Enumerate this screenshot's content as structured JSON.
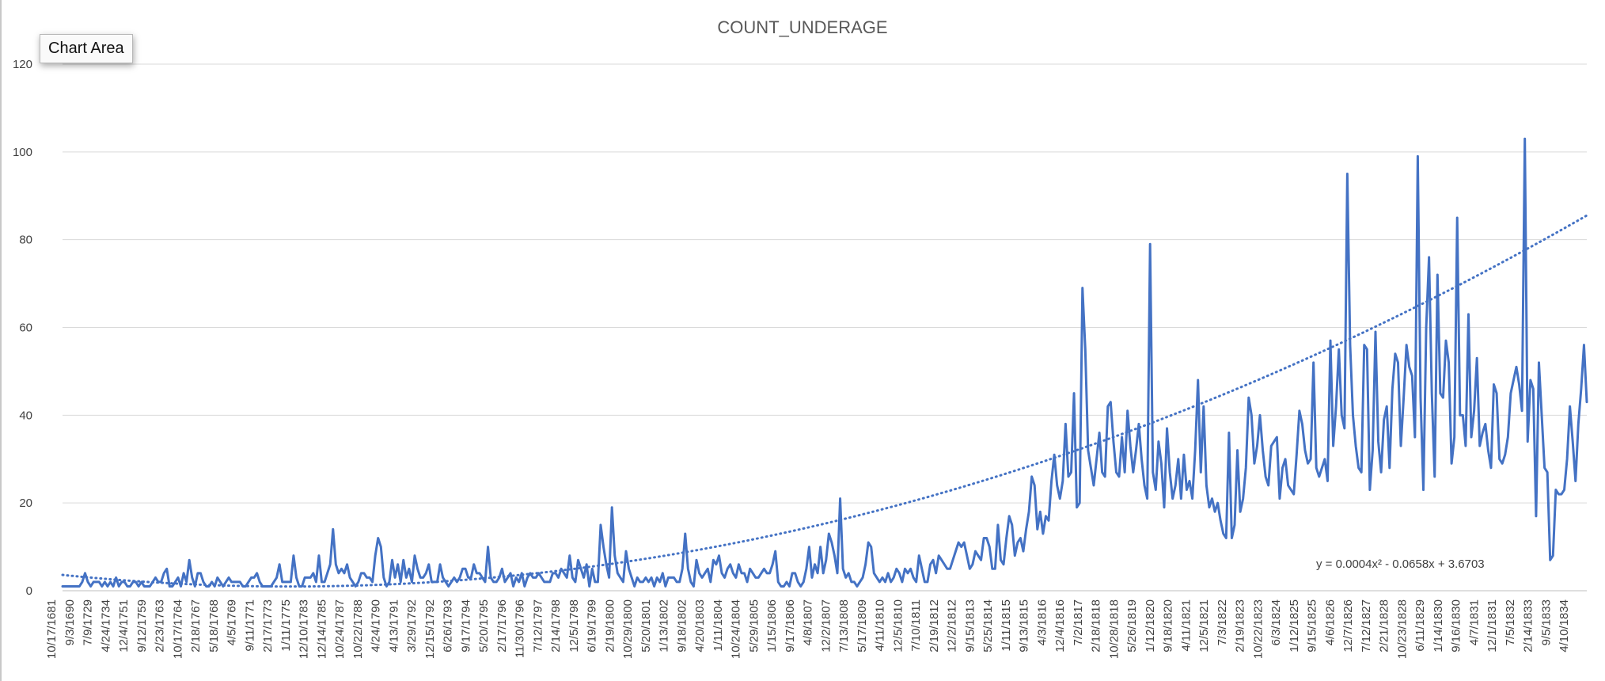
{
  "tooltip": "Chart Area",
  "chart_data": {
    "type": "line",
    "title": "COUNT_UNDERAGE",
    "xlabel": "",
    "ylabel": "",
    "ylim": [
      0,
      120
    ],
    "yticks": [
      "0",
      "20",
      "40",
      "60",
      "80",
      "100",
      "120"
    ],
    "grid": true,
    "legend": "none",
    "series_color": "#4472C4",
    "trendline_color": "#4472C4",
    "trendline_label": "y = 0.0004x² - 0.0658x + 3.6703",
    "trendline_coefficients": {
      "a": 0.0004,
      "b": -0.0658,
      "c": 3.6703
    },
    "x_tick_labels": [
      "10/17/1681",
      "9/3/1690",
      "7/9/1729",
      "4/24/1734",
      "12/4/1751",
      "9/12/1759",
      "2/23/1763",
      "10/17/1764",
      "2/18/1767",
      "5/18/1768",
      "4/5/1769",
      "9/11/1771",
      "2/17/1773",
      "1/11/1775",
      "12/10/1783",
      "12/14/1785",
      "10/24/1787",
      "10/22/1788",
      "4/24/1790",
      "4/13/1791",
      "3/29/1792",
      "12/15/1792",
      "6/26/1793",
      "9/17/1794",
      "5/20/1795",
      "2/17/1796",
      "11/30/1796",
      "7/12/1797",
      "2/14/1798",
      "12/5/1798",
      "6/19/1799",
      "2/19/1800",
      "10/29/1800",
      "5/20/1801",
      "1/13/1802",
      "9/18/1802",
      "4/20/1803",
      "1/11/1804",
      "10/24/1804",
      "5/29/1805",
      "1/15/1806",
      "9/17/1806",
      "4/8/1807",
      "12/2/1807",
      "7/13/1808",
      "5/17/1809",
      "4/11/1810",
      "12/5/1810",
      "7/10/1811",
      "2/19/1812",
      "12/2/1812",
      "9/15/1813",
      "5/25/1814",
      "1/11/1815",
      "9/13/1815",
      "4/3/1816",
      "12/4/1816",
      "7/2/1817",
      "2/18/1818",
      "10/28/1818",
      "5/26/1819",
      "1/12/1820",
      "9/18/1820",
      "4/11/1821",
      "12/5/1821",
      "7/3/1822",
      "2/19/1823",
      "10/22/1823",
      "6/3/1824",
      "1/12/1825",
      "9/15/1825",
      "4/6/1826",
      "12/7/1826",
      "7/12/1827",
      "2/21/1828",
      "10/23/1828",
      "6/11/1829",
      "1/14/1830",
      "9/16/1830",
      "4/7/1831",
      "12/1/1831",
      "7/5/1832",
      "2/14/1833",
      "9/5/1833",
      "4/10/1834"
    ],
    "series": [
      {
        "values": [
          1,
          1,
          1,
          1,
          1,
          1,
          1,
          2,
          4,
          2,
          1,
          2,
          2,
          2,
          1,
          2,
          1,
          2,
          1,
          3,
          1,
          2,
          2,
          1,
          1,
          2,
          2,
          1,
          2,
          1,
          1,
          1,
          2,
          3,
          2,
          2,
          4,
          5,
          1,
          1,
          2,
          3,
          1,
          4,
          2,
          7,
          3,
          1,
          4,
          4,
          2,
          1,
          1,
          2,
          1,
          3,
          2,
          1,
          2,
          3,
          2,
          2,
          2,
          2,
          1,
          1,
          2,
          3,
          3,
          4,
          2,
          1,
          1,
          1,
          1,
          2,
          3,
          6,
          2,
          2,
          2,
          2,
          8,
          3,
          1,
          1,
          3,
          3,
          3,
          4,
          2,
          8,
          2,
          2,
          4,
          6,
          14,
          6,
          4,
          5,
          4,
          6,
          3,
          2,
          1,
          2,
          4,
          4,
          3,
          3,
          2,
          8,
          12,
          10,
          3,
          1,
          2,
          7,
          3,
          6,
          2,
          7,
          3,
          5,
          2,
          8,
          5,
          3,
          3,
          4,
          6,
          2,
          2,
          2,
          6,
          3,
          2,
          1,
          2,
          3,
          2,
          3,
          5,
          5,
          3,
          3,
          6,
          4,
          4,
          3,
          2,
          10,
          3,
          2,
          2,
          3,
          5,
          2,
          3,
          4,
          1,
          3,
          2,
          4,
          1,
          3,
          4,
          3,
          3,
          4,
          3,
          2,
          2,
          2,
          4,
          4,
          3,
          5,
          4,
          3,
          8,
          3,
          2,
          7,
          5,
          3,
          6,
          1,
          5,
          2,
          2,
          15,
          10,
          6,
          3,
          19,
          8,
          4,
          3,
          2,
          9,
          5,
          3,
          1,
          3,
          2,
          2,
          3,
          2,
          3,
          1,
          3,
          2,
          4,
          1,
          3,
          3,
          3,
          2,
          2,
          5,
          13,
          5,
          2,
          1,
          7,
          4,
          3,
          4,
          5,
          2,
          7,
          6,
          8,
          4,
          3,
          5,
          6,
          4,
          3,
          6,
          4,
          4,
          2,
          5,
          4,
          3,
          3,
          4,
          5,
          4,
          4,
          6,
          9,
          2,
          1,
          1,
          2,
          1,
          4,
          4,
          2,
          1,
          2,
          5,
          10,
          3,
          6,
          4,
          10,
          4,
          7,
          13,
          11,
          8,
          4,
          21,
          5,
          3,
          4,
          2,
          2,
          1,
          2,
          3,
          6,
          11,
          10,
          4,
          3,
          2,
          3,
          2,
          4,
          2,
          3,
          5,
          4,
          2,
          5,
          4,
          5,
          3,
          2,
          8,
          5,
          2,
          2,
          6,
          7,
          4,
          8,
          7,
          6,
          5,
          5,
          7,
          9,
          11,
          10,
          11,
          8,
          5,
          6,
          9,
          8,
          7,
          12,
          12,
          10,
          5,
          5,
          15,
          7,
          6,
          12,
          17,
          15,
          8,
          11,
          12,
          9,
          14,
          18,
          26,
          24,
          14,
          18,
          13,
          17,
          16,
          25,
          31,
          24,
          21,
          25,
          38,
          26,
          27,
          45,
          19,
          20,
          69,
          55,
          32,
          28,
          24,
          30,
          36,
          27,
          26,
          42,
          43,
          34,
          27,
          26,
          35,
          27,
          41,
          33,
          27,
          32,
          38,
          30,
          24,
          21,
          79,
          27,
          23,
          34,
          29,
          19,
          37,
          27,
          21,
          24,
          30,
          21,
          31,
          23,
          25,
          21,
          32,
          48,
          27,
          42,
          24,
          19,
          21,
          18,
          20,
          16,
          13,
          12,
          36,
          12,
          15,
          32,
          18,
          21,
          28,
          44,
          40,
          29,
          33,
          40,
          32,
          26,
          24,
          33,
          34,
          35,
          21,
          28,
          30,
          24,
          23,
          22,
          31,
          41,
          38,
          32,
          29,
          30,
          52,
          28,
          26,
          28,
          30,
          25,
          57,
          33,
          42,
          55,
          40,
          37,
          95,
          56,
          40,
          33,
          28,
          27,
          56,
          55,
          23,
          32,
          59,
          34,
          27,
          39,
          42,
          28,
          46,
          54,
          52,
          33,
          44,
          56,
          51,
          49,
          35,
          99,
          44,
          23,
          60,
          76,
          45,
          26,
          72,
          45,
          44,
          57,
          52,
          29,
          35,
          85,
          40,
          40,
          33,
          63,
          35,
          41,
          53,
          33,
          36,
          38,
          32,
          28,
          47,
          45,
          30,
          29,
          31,
          35,
          45,
          48,
          51,
          47,
          41,
          103,
          34,
          48,
          46,
          17,
          52,
          40,
          28,
          27,
          7,
          8,
          23,
          22,
          22,
          23,
          30,
          42,
          34,
          25,
          38,
          46,
          56,
          43
        ]
      }
    ]
  }
}
